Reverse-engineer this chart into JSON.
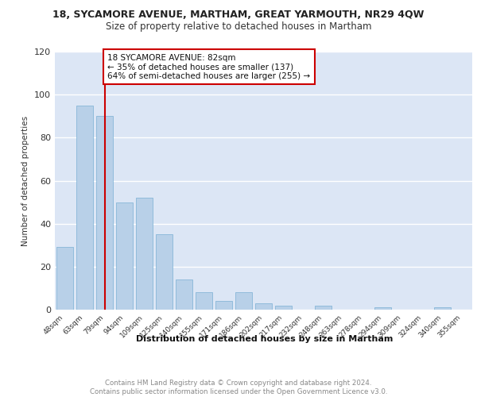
{
  "title_main": "18, SYCAMORE AVENUE, MARTHAM, GREAT YARMOUTH, NR29 4QW",
  "title_sub": "Size of property relative to detached houses in Martham",
  "xlabel": "Distribution of detached houses by size in Martham",
  "ylabel": "Number of detached properties",
  "categories": [
    "48sqm",
    "63sqm",
    "79sqm",
    "94sqm",
    "109sqm",
    "125sqm",
    "140sqm",
    "155sqm",
    "171sqm",
    "186sqm",
    "202sqm",
    "217sqm",
    "232sqm",
    "248sqm",
    "263sqm",
    "278sqm",
    "294sqm",
    "309sqm",
    "324sqm",
    "340sqm",
    "355sqm"
  ],
  "values": [
    29,
    95,
    90,
    50,
    52,
    35,
    14,
    8,
    4,
    8,
    3,
    2,
    0,
    2,
    0,
    0,
    1,
    0,
    0,
    1,
    0
  ],
  "bar_color": "#b8d0e8",
  "bar_edge_color": "#7aafd4",
  "highlight_index": 2,
  "highlight_color": "#cc0000",
  "annotation_text": "18 SYCAMORE AVENUE: 82sqm\n← 35% of detached houses are smaller (137)\n64% of semi-detached houses are larger (255) →",
  "annotation_box_color": "#ffffff",
  "annotation_border_color": "#cc0000",
  "ylim": [
    0,
    120
  ],
  "yticks": [
    0,
    20,
    40,
    60,
    80,
    100,
    120
  ],
  "background_color": "#dce6f5",
  "grid_color": "#ffffff",
  "footer_text": "Contains HM Land Registry data © Crown copyright and database right 2024.\nContains public sector information licensed under the Open Government Licence v3.0.",
  "footer_color": "#888888"
}
